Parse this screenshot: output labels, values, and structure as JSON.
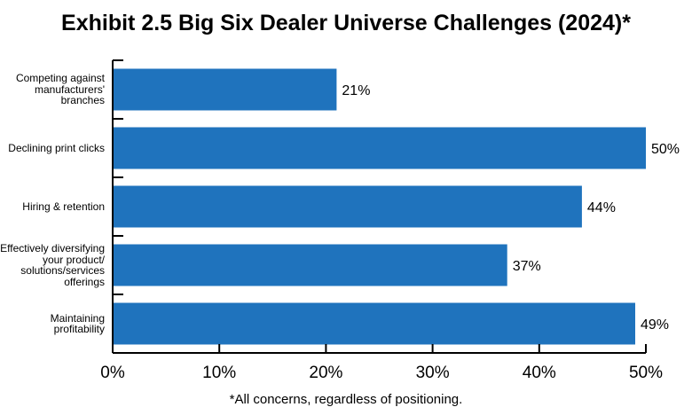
{
  "title": "Exhibit 2.5 Big Six Dealer Universe Challenges (2024)*",
  "footnote": "*All concerns, regardless of positioning.",
  "colors": {
    "bar": "#1f73bd",
    "axis": "#000000",
    "text": "#000000"
  },
  "chart_data": {
    "type": "bar",
    "orientation": "horizontal",
    "title": "Exhibit 2.5 Big Six Dealer Universe Challenges (2024)*",
    "xlabel": "",
    "ylabel": "",
    "categories": [
      [
        "Competing against",
        "manufacturers'",
        "branches"
      ],
      [
        "Declining print clicks"
      ],
      [
        "Hiring & retention"
      ],
      [
        "Effectively diversifying",
        "your product/",
        "solutions/services",
        "offerings"
      ],
      [
        "Maintaining",
        "profitability"
      ]
    ],
    "values": [
      21,
      50,
      44,
      37,
      49
    ],
    "value_labels": [
      "21%",
      "50%",
      "44%",
      "37%",
      "49%"
    ],
    "xlim": [
      0,
      50
    ],
    "xticks": [
      "0%",
      "10%",
      "20%",
      "30%",
      "40%",
      "50%"
    ],
    "grid": false,
    "legend": "none"
  }
}
